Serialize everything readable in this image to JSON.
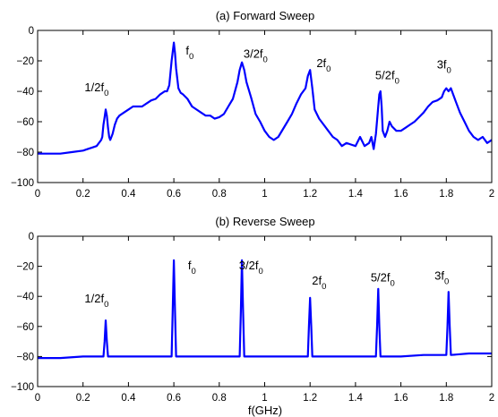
{
  "figure": {
    "xlabel": "f(GHz)"
  },
  "colors": {
    "series": "#0000FF",
    "axes": "#000000"
  },
  "chart_data": [
    {
      "type": "line",
      "title": "(a) Forward Sweep",
      "xlabel": "",
      "ylabel": "",
      "xlim": [
        0,
        2
      ],
      "ylim": [
        -100,
        0
      ],
      "x_ticks": [
        "0",
        "0.2",
        "0.4",
        "0.6",
        "0.8",
        "1",
        "1.2",
        "1.4",
        "1.6",
        "1.8",
        "2"
      ],
      "y_ticks": [
        "0",
        "−20",
        "−40",
        "−60",
        "−80",
        "−100"
      ],
      "grid": false,
      "annotations": [
        {
          "main": "1/2f",
          "sub": "0",
          "x": 0.26,
          "y": -40
        },
        {
          "main": "f",
          "sub": "0",
          "x": 0.67,
          "y": -16
        },
        {
          "main": "3/2f",
          "sub": "0",
          "x": 0.96,
          "y": -18
        },
        {
          "main": "2f",
          "sub": "0",
          "x": 1.26,
          "y": -24
        },
        {
          "main": "5/2f",
          "sub": "0",
          "x": 1.54,
          "y": -32
        },
        {
          "main": "3f",
          "sub": "0",
          "x": 1.79,
          "y": -25
        }
      ],
      "series": [
        {
          "x": [
            0.0,
            0.05,
            0.1,
            0.15,
            0.2,
            0.22,
            0.24,
            0.26,
            0.28,
            0.285,
            0.29,
            0.295,
            0.3,
            0.305,
            0.31,
            0.315,
            0.32,
            0.33,
            0.34,
            0.35,
            0.36,
            0.38,
            0.4,
            0.42,
            0.44,
            0.46,
            0.48,
            0.5,
            0.52,
            0.54,
            0.56,
            0.57,
            0.58,
            0.59,
            0.6,
            0.605,
            0.61,
            0.62,
            0.63,
            0.64,
            0.66,
            0.68,
            0.7,
            0.72,
            0.74,
            0.76,
            0.78,
            0.8,
            0.82,
            0.84,
            0.86,
            0.88,
            0.89,
            0.9,
            0.91,
            0.92,
            0.94,
            0.96,
            0.98,
            1.0,
            1.02,
            1.04,
            1.06,
            1.08,
            1.1,
            1.12,
            1.14,
            1.16,
            1.18,
            1.19,
            1.2,
            1.21,
            1.22,
            1.24,
            1.26,
            1.28,
            1.3,
            1.32,
            1.34,
            1.36,
            1.38,
            1.4,
            1.42,
            1.44,
            1.46,
            1.47,
            1.48,
            1.49,
            1.5,
            1.505,
            1.51,
            1.515,
            1.52,
            1.53,
            1.54,
            1.55,
            1.56,
            1.58,
            1.6,
            1.62,
            1.64,
            1.66,
            1.68,
            1.7,
            1.72,
            1.74,
            1.76,
            1.78,
            1.79,
            1.8,
            1.81,
            1.82,
            1.84,
            1.86,
            1.88,
            1.9,
            1.92,
            1.94,
            1.96,
            1.98,
            2.0
          ],
          "y": [
            -81,
            -81,
            -81,
            -80,
            -79,
            -78,
            -77,
            -76,
            -72,
            -70,
            -62,
            -57,
            -52,
            -56,
            -64,
            -70,
            -72,
            -68,
            -62,
            -58,
            -56,
            -54,
            -52,
            -50,
            -50,
            -50,
            -48,
            -46,
            -45,
            -42,
            -40,
            -40,
            -36,
            -20,
            -8,
            -15,
            -25,
            -38,
            -41,
            -42,
            -45,
            -50,
            -52,
            -54,
            -56,
            -56,
            -58,
            -57,
            -55,
            -50,
            -45,
            -34,
            -26,
            -21,
            -26,
            -34,
            -44,
            -55,
            -60,
            -66,
            -70,
            -72,
            -70,
            -65,
            -60,
            -55,
            -48,
            -42,
            -38,
            -30,
            -26,
            -38,
            -52,
            -58,
            -62,
            -66,
            -70,
            -72,
            -76,
            -74,
            -75,
            -76,
            -70,
            -76,
            -74,
            -70,
            -78,
            -68,
            -50,
            -42,
            -40,
            -50,
            -66,
            -70,
            -66,
            -60,
            -63,
            -66,
            -66,
            -64,
            -62,
            -60,
            -57,
            -54,
            -50,
            -47,
            -46,
            -44,
            -40,
            -38,
            -40,
            -38,
            -46,
            -54,
            -60,
            -66,
            -70,
            -72,
            -70,
            -74,
            -72
          ]
        }
      ]
    },
    {
      "type": "line",
      "title": "(b) Reverse Sweep",
      "xlabel": "f(GHz)",
      "ylabel": "",
      "xlim": [
        0,
        2
      ],
      "ylim": [
        -100,
        0
      ],
      "x_ticks": [
        "0",
        "0.2",
        "0.4",
        "0.6",
        "0.8",
        "1",
        "1.2",
        "1.4",
        "1.6",
        "1.8",
        "2"
      ],
      "y_ticks": [
        "0",
        "−20",
        "−40",
        "−60",
        "−80",
        "−100"
      ],
      "grid": false,
      "annotations": [
        {
          "main": "1/2f",
          "sub": "0",
          "x": 0.26,
          "y": -44
        },
        {
          "main": "f",
          "sub": "0",
          "x": 0.68,
          "y": -22
        },
        {
          "main": "3/2f",
          "sub": "0",
          "x": 0.94,
          "y": -22
        },
        {
          "main": "2f",
          "sub": "0",
          "x": 1.24,
          "y": -32
        },
        {
          "main": "5/2f",
          "sub": "0",
          "x": 1.52,
          "y": -30
        },
        {
          "main": "3f",
          "sub": "0",
          "x": 1.78,
          "y": -29
        }
      ],
      "series": [
        {
          "x": [
            0.0,
            0.1,
            0.2,
            0.29,
            0.295,
            0.3,
            0.305,
            0.31,
            0.4,
            0.5,
            0.59,
            0.595,
            0.6,
            0.605,
            0.61,
            0.7,
            0.8,
            0.89,
            0.895,
            0.9,
            0.905,
            0.91,
            1.0,
            1.1,
            1.19,
            1.195,
            1.2,
            1.205,
            1.21,
            1.3,
            1.4,
            1.49,
            1.495,
            1.5,
            1.505,
            1.51,
            1.6,
            1.7,
            1.8,
            1.805,
            1.81,
            1.815,
            1.82,
            1.9,
            2.0
          ],
          "y": [
            -81,
            -81,
            -80,
            -80,
            -70,
            -56,
            -70,
            -80,
            -80,
            -80,
            -80,
            -50,
            -16,
            -50,
            -80,
            -80,
            -80,
            -80,
            -50,
            -16,
            -50,
            -80,
            -80,
            -80,
            -80,
            -60,
            -41,
            -60,
            -80,
            -80,
            -80,
            -80,
            -60,
            -35,
            -60,
            -80,
            -80,
            -79,
            -79,
            -60,
            -37,
            -60,
            -79,
            -78,
            -78
          ]
        }
      ]
    }
  ]
}
